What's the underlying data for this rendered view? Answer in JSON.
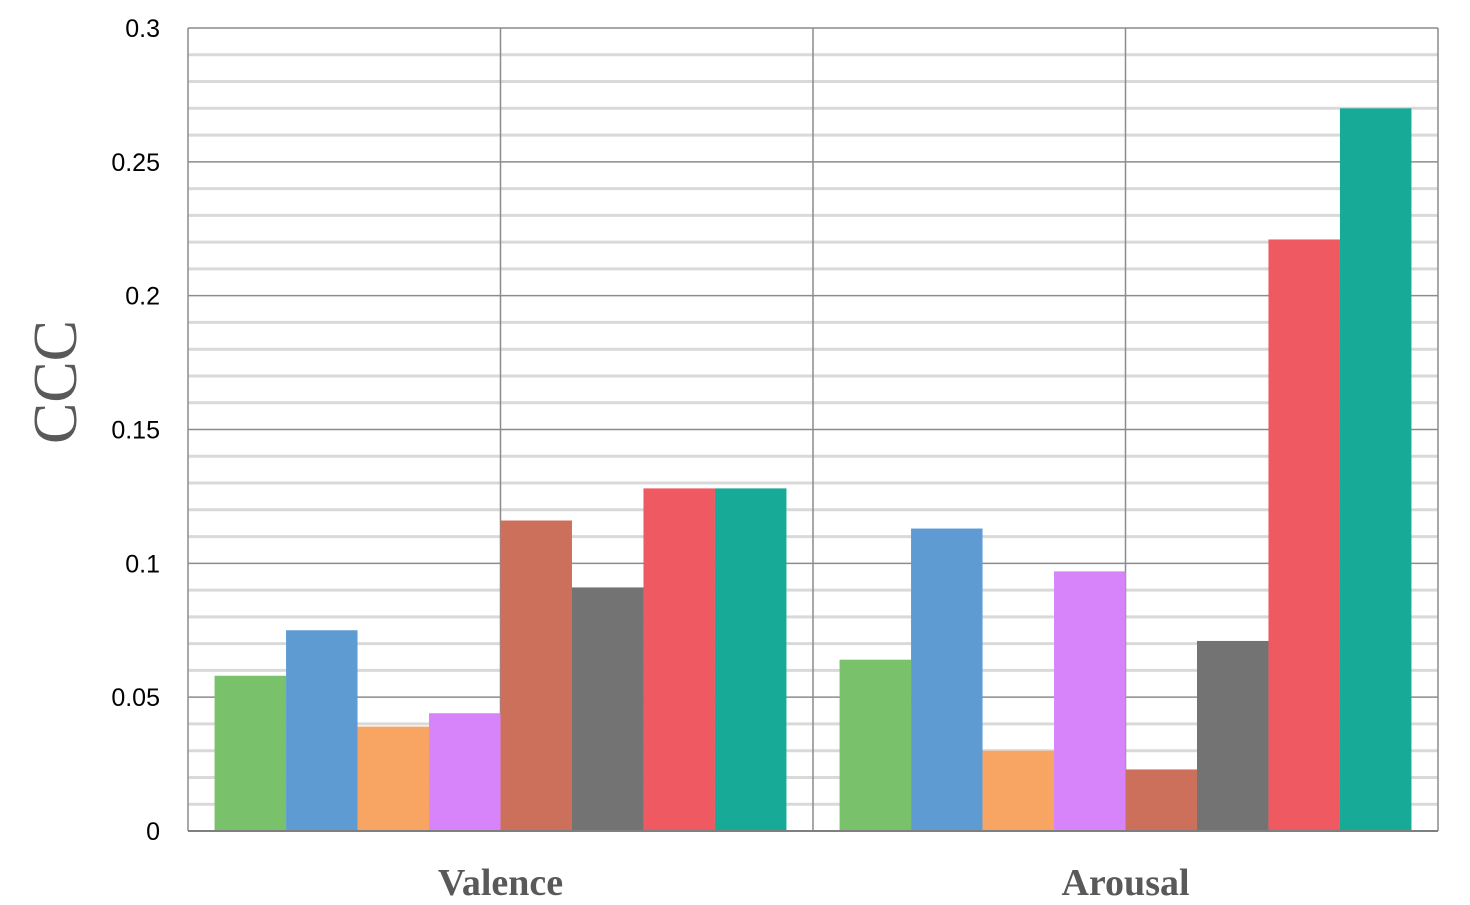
{
  "chart_data": {
    "type": "bar",
    "categories": [
      "Valence",
      "Arousal"
    ],
    "series": [
      {
        "color": "#7ac16b",
        "values": [
          0.058,
          0.064
        ]
      },
      {
        "color": "#5e9bd3",
        "values": [
          0.075,
          0.113
        ]
      },
      {
        "color": "#f8a462",
        "values": [
          0.039,
          0.03
        ]
      },
      {
        "color": "#d784fb",
        "values": [
          0.044,
          0.097
        ]
      },
      {
        "color": "#cc705c",
        "values": [
          0.116,
          0.023
        ]
      },
      {
        "color": "#737373",
        "values": [
          0.091,
          0.071
        ]
      },
      {
        "color": "#ef5a62",
        "values": [
          0.128,
          0.221
        ]
      },
      {
        "color": "#17aa96",
        "values": [
          0.128,
          0.27
        ]
      }
    ],
    "ylabel": "CCC",
    "xlabel": "",
    "ylim": [
      0,
      0.3
    ],
    "yticks": [
      "0",
      "0.05",
      "0.1",
      "0.15",
      "0.2",
      "0.25",
      "0.3"
    ],
    "minor_step": 0.01,
    "grid": true,
    "legend": "none"
  }
}
